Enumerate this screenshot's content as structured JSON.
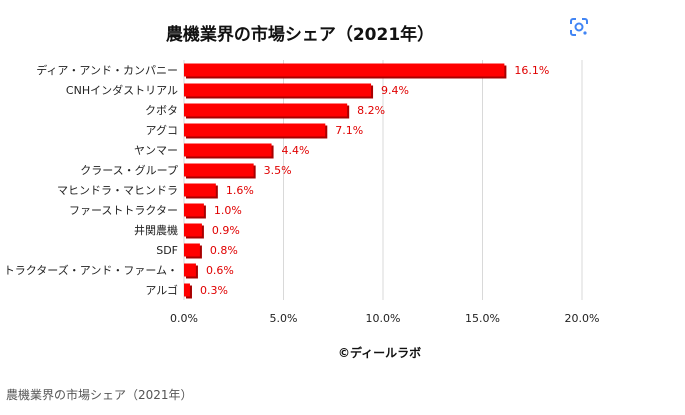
{
  "chart_data": {
    "type": "bar",
    "orientation": "horizontal",
    "title": "農機業界の市場シェア（2021年）",
    "categories": [
      "ディア・アンド・カンパニー",
      "CNHインダストリアル",
      "クボタ",
      "アグコ",
      "ヤンマー",
      "クラース・グループ",
      "マヒンドラ・マヒンドラ",
      "ファーストトラクター",
      "井関農機",
      "SDF",
      "トラクターズ・アンド・ファーム・",
      "アルゴ"
    ],
    "values": [
      16.1,
      9.4,
      8.2,
      7.1,
      4.4,
      3.5,
      1.6,
      1.0,
      0.9,
      0.8,
      0.6,
      0.3
    ],
    "value_labels": [
      "16.1%",
      "9.4%",
      "8.2%",
      "7.1%",
      "4.4%",
      "3.5%",
      "1.6%",
      "1.0%",
      "0.9%",
      "0.8%",
      "0.6%",
      "0.3%"
    ],
    "xlim": [
      0,
      20
    ],
    "xticks": [
      0,
      5,
      10,
      15,
      20
    ],
    "xtick_labels": [
      "0.0%",
      "5.0%",
      "10.0%",
      "15.0%",
      "20.0%"
    ],
    "grid": "vertical",
    "colors": {
      "bar": "#ff0000",
      "bar_shadow": "#a80000",
      "value_label": "#e00000",
      "grid": "#d9d9d9"
    }
  },
  "credit": "©ディールラボ",
  "caption": "農機業界の市場シェア（2021年）",
  "icons": {
    "lens": "google-lens-icon"
  }
}
